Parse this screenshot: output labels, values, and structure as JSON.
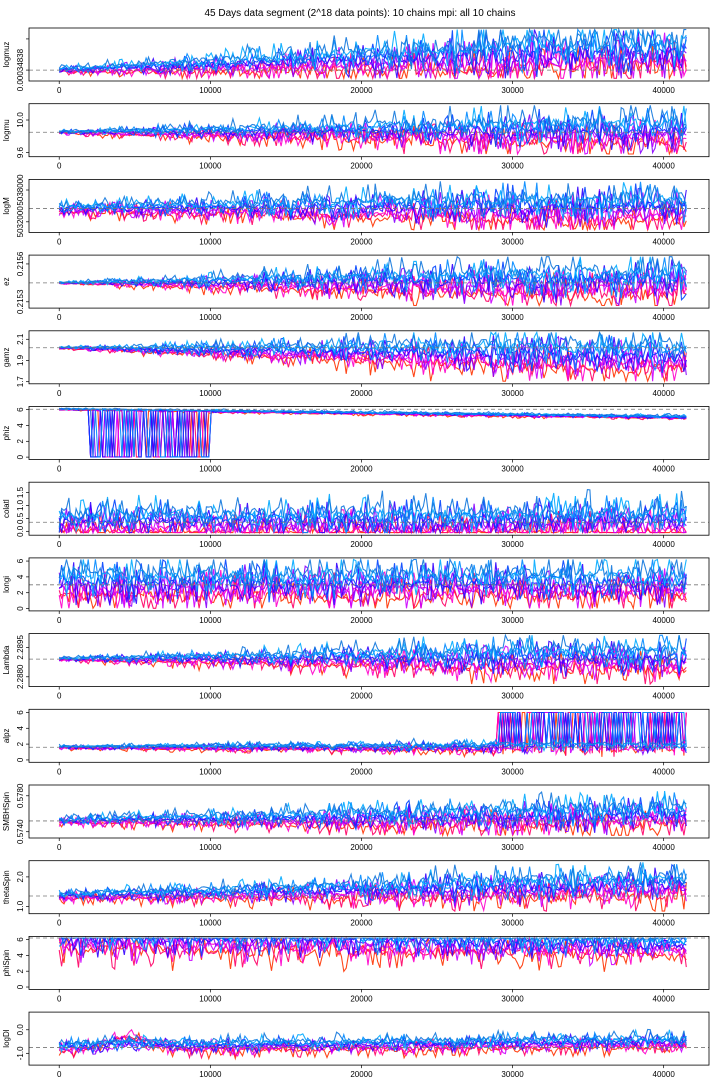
{
  "figure": {
    "title": "45 Days data segment (2^18 data points): 10 chains mpi: all 10 chains"
  },
  "colors": {
    "chains": [
      "#ff3300",
      "#ff0066",
      "#ff00cc",
      "#cc00ff",
      "#8800ff",
      "#3300ff",
      "#0044ff",
      "#0088ff",
      "#00aaff",
      "#1177dd"
    ],
    "reference_line": "#777777",
    "frame": "#000000"
  },
  "chart_data": [
    {
      "type": "line",
      "name": "logmuz",
      "ylabel": "logmuz",
      "ytick_labels": [
        "0.00034838",
        ""
      ],
      "ytick_values": [
        0.0,
        1.0
      ],
      "ylim": [
        -0.35,
        1.35
      ],
      "reference_value": 0.0,
      "x_ticks": [
        0,
        10000,
        20000,
        30000,
        40000
      ],
      "x_tick_labels": [
        "0",
        "10000",
        "20000",
        "30000",
        "40000"
      ],
      "xlim": [
        -2000,
        43000
      ],
      "n_iterations": 41500,
      "n_chains": 10,
      "spread_start": 0.15,
      "spread_end": 1.2,
      "drift_end": 0.35,
      "spikes": false
    },
    {
      "type": "line",
      "name": "logmu",
      "ylabel": "logmu",
      "ytick_labels": [
        "9.6",
        "10.0"
      ],
      "ytick_values": [
        9.6,
        10.0
      ],
      "ylim": [
        9.55,
        10.2
      ],
      "reference_value": 9.85,
      "x_ticks": [
        0,
        10000,
        20000,
        30000,
        40000
      ],
      "x_tick_labels": [
        "0",
        "10000",
        "20000",
        "30000",
        "40000"
      ],
      "xlim": [
        -2000,
        43000
      ],
      "n_iterations": 41500,
      "n_chains": 10,
      "spread_start": 0.1,
      "spread_end": 0.9,
      "drift_end": 0.0,
      "spikes": false
    },
    {
      "type": "line",
      "name": "logM",
      "ylabel": "logM",
      "ytick_labels": [
        "5032000",
        "5038000"
      ],
      "ytick_values": [
        5032000,
        5038000
      ],
      "ylim": [
        5030000,
        5040000
      ],
      "reference_value": 5034500,
      "x_ticks": [
        0,
        10000,
        20000,
        30000,
        40000
      ],
      "x_tick_labels": [
        "0",
        "10000",
        "20000",
        "30000",
        "40000"
      ],
      "xlim": [
        -2000,
        43000
      ],
      "n_iterations": 41500,
      "n_chains": 10,
      "spread_start": 0.3,
      "spread_end": 0.95,
      "drift_end": 0.0,
      "spikes": false
    },
    {
      "type": "line",
      "name": "ez",
      "ylabel": "ez",
      "ytick_labels": [
        "0.2153",
        "0.2156"
      ],
      "ytick_values": [
        0.2153,
        0.2156
      ],
      "ylim": [
        0.21525,
        0.21567
      ],
      "reference_value": 0.21545,
      "x_ticks": [
        0,
        10000,
        20000,
        30000,
        40000
      ],
      "x_tick_labels": [
        "0",
        "10000",
        "20000",
        "30000",
        "40000"
      ],
      "xlim": [
        -2000,
        43000
      ],
      "n_iterations": 41500,
      "n_chains": 10,
      "spread_start": 0.05,
      "spread_end": 1.0,
      "drift_end": 0.0,
      "spikes": false
    },
    {
      "type": "line",
      "name": "gamz",
      "ylabel": "gamz",
      "ytick_labels": [
        "1.7",
        "1.9",
        "2.1"
      ],
      "ytick_values": [
        1.7,
        1.9,
        2.1
      ],
      "ylim": [
        1.68,
        2.18
      ],
      "reference_value": 2.02,
      "x_ticks": [
        0,
        10000,
        20000,
        30000,
        40000
      ],
      "x_tick_labels": [
        "0",
        "10000",
        "20000",
        "30000",
        "40000"
      ],
      "xlim": [
        -2000,
        43000
      ],
      "n_iterations": 41500,
      "n_chains": 10,
      "spread_start": 0.05,
      "spread_end": 0.95,
      "drift_end": -0.2,
      "spikes": false
    },
    {
      "type": "line",
      "name": "phiz",
      "ylabel": "phiz",
      "ytick_labels": [
        "0",
        "2",
        "4",
        "6"
      ],
      "ytick_values": [
        0,
        2,
        4,
        6
      ],
      "ylim": [
        -0.3,
        6.4
      ],
      "reference_value": 6.05,
      "x_ticks": [
        0,
        10000,
        20000,
        30000,
        40000
      ],
      "x_tick_labels": [
        "0",
        "10000",
        "20000",
        "30000",
        "40000"
      ],
      "xlim": [
        -2000,
        43000
      ],
      "n_iterations": 41500,
      "n_chains": 10,
      "spread_start": 0.05,
      "spread_end": 0.1,
      "drift_end": -0.15,
      "spikes": true,
      "spike_range": [
        2000,
        10000
      ],
      "spike_target": 0.0
    },
    {
      "type": "line",
      "name": "colatl",
      "ylabel": "colatl",
      "ytick_labels": [
        "0.0",
        "0.5",
        "1.0",
        "1.5"
      ],
      "ytick_values": [
        0.0,
        0.5,
        1.0,
        1.5
      ],
      "ylim": [
        -0.15,
        1.9
      ],
      "reference_value": 0.35,
      "x_ticks": [
        0,
        10000,
        20000,
        30000,
        40000
      ],
      "x_tick_labels": [
        "0",
        "10000",
        "20000",
        "30000",
        "40000"
      ],
      "xlim": [
        -2000,
        43000
      ],
      "n_iterations": 41500,
      "n_chains": 10,
      "spread_start": 0.9,
      "spread_end": 0.95,
      "drift_end": 0.0,
      "spikes": false
    },
    {
      "type": "line",
      "name": "longi",
      "ylabel": "longi",
      "ytick_labels": [
        "0",
        "2",
        "4",
        "6"
      ],
      "ytick_values": [
        0,
        2,
        4,
        6
      ],
      "ylim": [
        -0.3,
        6.4
      ],
      "reference_value": 3.0,
      "x_ticks": [
        0,
        10000,
        20000,
        30000,
        40000
      ],
      "x_tick_labels": [
        "0",
        "10000",
        "20000",
        "30000",
        "40000"
      ],
      "xlim": [
        -2000,
        43000
      ],
      "n_iterations": 41500,
      "n_chains": 10,
      "spread_start": 1.0,
      "spread_end": 1.0,
      "drift_end": 0.0,
      "spikes": false
    },
    {
      "type": "line",
      "name": "Lambda",
      "ylabel": "Lambda",
      "ytick_labels": [
        "2.2880",
        "2.2895"
      ],
      "ytick_values": [
        2.288,
        2.2895
      ],
      "ylim": [
        2.2875,
        2.2902
      ],
      "reference_value": 2.2889,
      "x_ticks": [
        0,
        10000,
        20000,
        30000,
        40000
      ],
      "x_tick_labels": [
        "0",
        "10000",
        "20000",
        "30000",
        "40000"
      ],
      "xlim": [
        -2000,
        43000
      ],
      "n_iterations": 41500,
      "n_chains": 10,
      "spread_start": 0.1,
      "spread_end": 0.85,
      "drift_end": 0.0,
      "spikes": false
    },
    {
      "type": "line",
      "name": "alpz",
      "ylabel": "alpz",
      "ytick_labels": [
        "0",
        "2",
        "4",
        "6"
      ],
      "ytick_values": [
        0,
        2,
        4,
        6
      ],
      "ylim": [
        -0.3,
        6.4
      ],
      "reference_value": 1.6,
      "x_ticks": [
        0,
        10000,
        20000,
        30000,
        40000
      ],
      "x_tick_labels": [
        "0",
        "10000",
        "20000",
        "30000",
        "40000"
      ],
      "xlim": [
        -2000,
        43000
      ],
      "n_iterations": 41500,
      "n_chains": 10,
      "spread_start": 0.1,
      "spread_end": 0.3,
      "drift_end": 0.0,
      "spikes": true,
      "spike_range": [
        29000,
        41500
      ],
      "spike_target": 6.0
    },
    {
      "type": "line",
      "name": "SMBHSpin",
      "ylabel": "SMBHSpin",
      "ytick_labels": [
        "0.5740",
        "0.5780"
      ],
      "ytick_values": [
        0.574,
        0.578
      ],
      "ylim": [
        0.5733,
        0.5792
      ],
      "reference_value": 0.5752,
      "x_ticks": [
        0,
        10000,
        20000,
        30000,
        40000
      ],
      "x_tick_labels": [
        "0",
        "10000",
        "20000",
        "30000",
        "40000"
      ],
      "xlim": [
        -2000,
        43000
      ],
      "n_iterations": 41500,
      "n_chains": 10,
      "spread_start": 0.2,
      "spread_end": 0.8,
      "drift_end": 0.1,
      "spikes": false
    },
    {
      "type": "line",
      "name": "thetaSpin",
      "ylabel": "thetaSpin",
      "ytick_labels": [
        "1.0",
        "2.0"
      ],
      "ytick_values": [
        1.0,
        2.0
      ],
      "ylim": [
        0.75,
        2.55
      ],
      "reference_value": 1.35,
      "x_ticks": [
        0,
        10000,
        20000,
        30000,
        40000
      ],
      "x_tick_labels": [
        "0",
        "10000",
        "20000",
        "30000",
        "40000"
      ],
      "xlim": [
        -2000,
        43000
      ],
      "n_iterations": 41500,
      "n_chains": 10,
      "spread_start": 0.25,
      "spread_end": 0.8,
      "drift_end": 0.2,
      "spikes": false
    },
    {
      "type": "line",
      "name": "phiSpin",
      "ylabel": "phiSpin",
      "ytick_labels": [
        "0",
        "2",
        "4",
        "6"
      ],
      "ytick_values": [
        0,
        2,
        4,
        6
      ],
      "ylim": [
        -0.3,
        6.4
      ],
      "reference_value": 6.2,
      "x_ticks": [
        0,
        10000,
        20000,
        30000,
        40000
      ],
      "x_tick_labels": [
        "0",
        "10000",
        "20000",
        "30000",
        "40000"
      ],
      "xlim": [
        -2000,
        43000
      ],
      "n_iterations": 41500,
      "n_chains": 10,
      "spread_start": 1.0,
      "spread_end": 0.8,
      "drift_end": -0.15,
      "spikes": false
    },
    {
      "type": "line",
      "name": "logDl",
      "ylabel": "logDl",
      "ytick_labels": [
        "-1.0",
        "0.0"
      ],
      "ytick_values": [
        -1.0,
        0.0
      ],
      "ylim": [
        -1.5,
        0.75
      ],
      "reference_value": -0.75,
      "x_ticks": [
        0,
        10000,
        20000,
        30000,
        40000
      ],
      "x_tick_labels": [
        "0",
        "10000",
        "20000",
        "30000",
        "40000"
      ],
      "xlim": [
        -2000,
        43000
      ],
      "n_iterations": 41500,
      "n_chains": 10,
      "spread_start": 0.35,
      "spread_end": 0.4,
      "drift_end": 0.1,
      "spikes": false,
      "bump": [
        4500,
        0.55
      ]
    }
  ]
}
